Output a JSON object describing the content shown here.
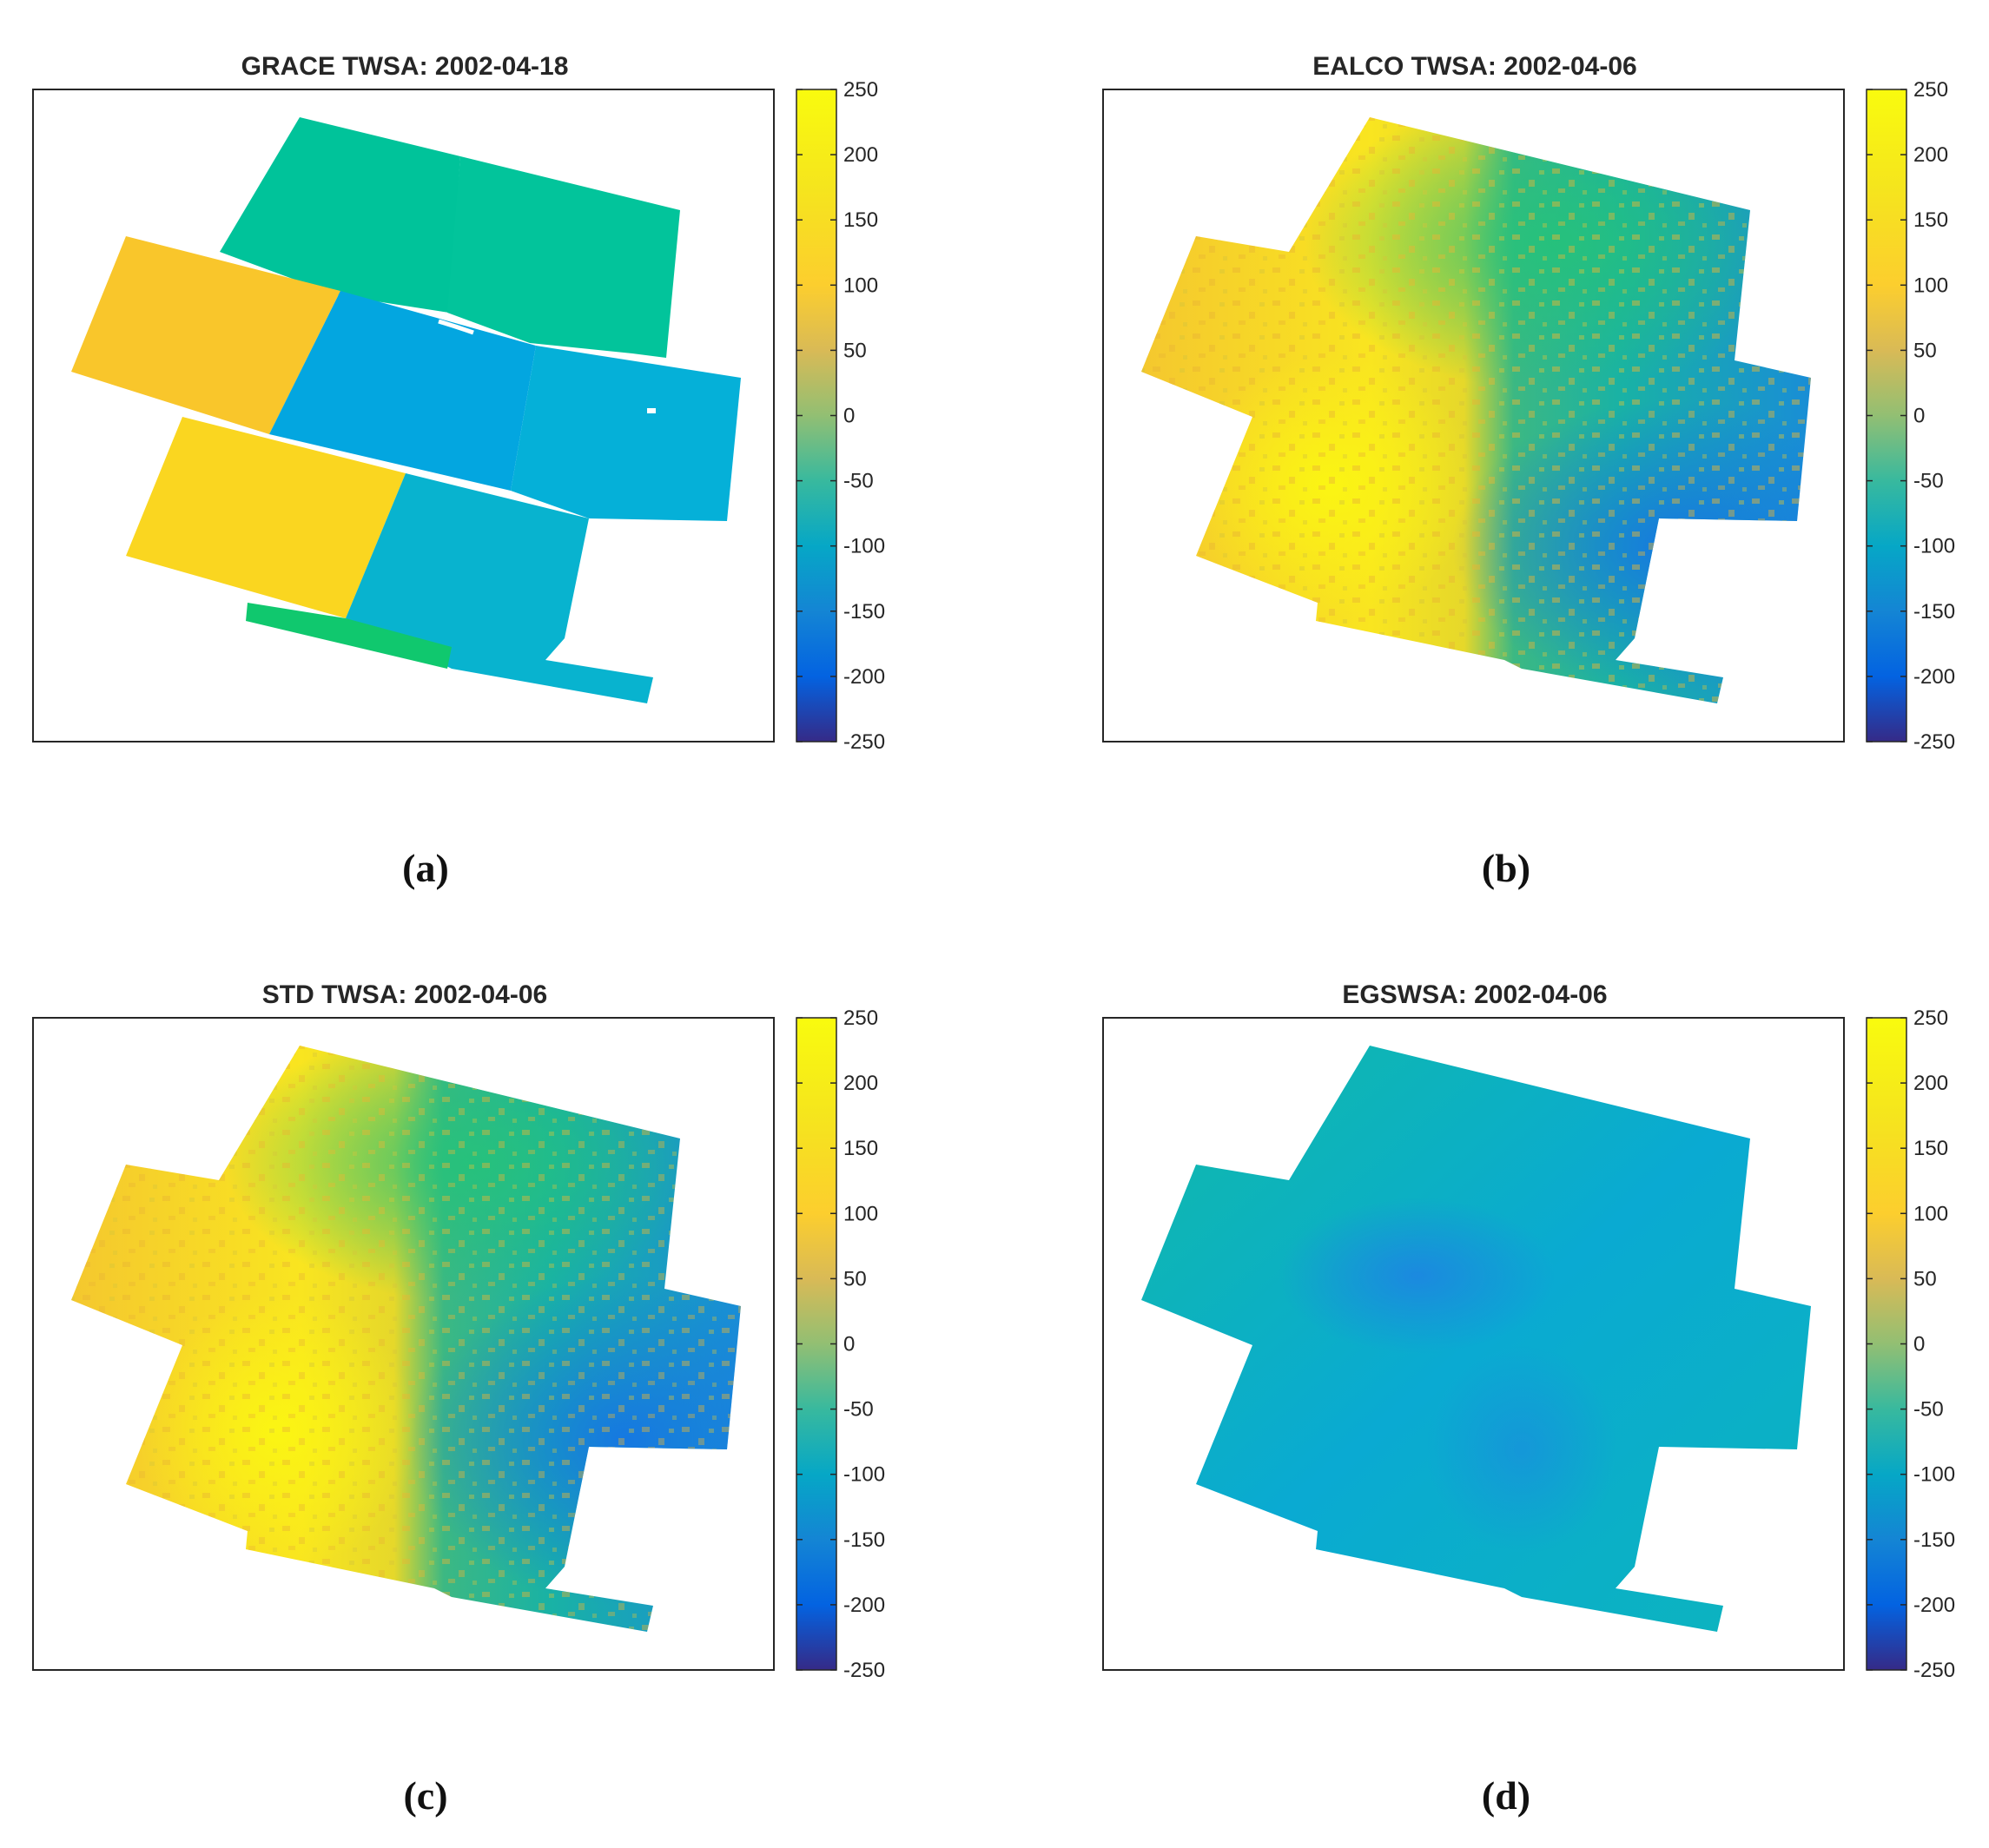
{
  "chart_data": [
    {
      "type": "heatmap",
      "panel": "(a)",
      "title": "GRACE TWSA: 2002-04-18",
      "colormap": "parula",
      "clim": [
        -250,
        250
      ],
      "colorbar_ticks": [
        250,
        200,
        150,
        100,
        50,
        0,
        -50,
        -100,
        -150,
        -200,
        -250
      ],
      "regions": [
        {
          "value": 30,
          "color": "#00c39a"
        },
        {
          "value": 28,
          "color": "#02c49b"
        },
        {
          "value": 175,
          "color": "#f9c62b"
        },
        {
          "value": -70,
          "color": "#03a6e0"
        },
        {
          "value": -55,
          "color": "#05b0d8"
        },
        {
          "value": 220,
          "color": "#fad620"
        },
        {
          "value": -45,
          "color": "#08b3cf"
        },
        {
          "value": 50,
          "color": "#10c86e"
        }
      ]
    },
    {
      "type": "heatmap",
      "panel": "(b)",
      "title": "EALCO TWSA: 2002-04-06",
      "colormap": "parula",
      "clim": [
        -250,
        250
      ],
      "colorbar_ticks": [
        250,
        200,
        150,
        100,
        50,
        0,
        -50,
        -100,
        -150,
        -200,
        -250
      ]
    },
    {
      "type": "heatmap",
      "panel": "(c)",
      "title": "STD TWSA: 2002-04-06",
      "colormap": "parula",
      "clim": [
        -250,
        250
      ],
      "colorbar_ticks": [
        250,
        200,
        150,
        100,
        50,
        0,
        -50,
        -100,
        -150,
        -200,
        -250
      ]
    },
    {
      "type": "heatmap",
      "panel": "(d)",
      "title": "EGSWSA: 2002-04-06",
      "colormap": "parula",
      "clim": [
        -250,
        250
      ],
      "colorbar_ticks": [
        250,
        200,
        150,
        100,
        50,
        0,
        -50,
        -100,
        -150,
        -200,
        -250
      ]
    }
  ]
}
